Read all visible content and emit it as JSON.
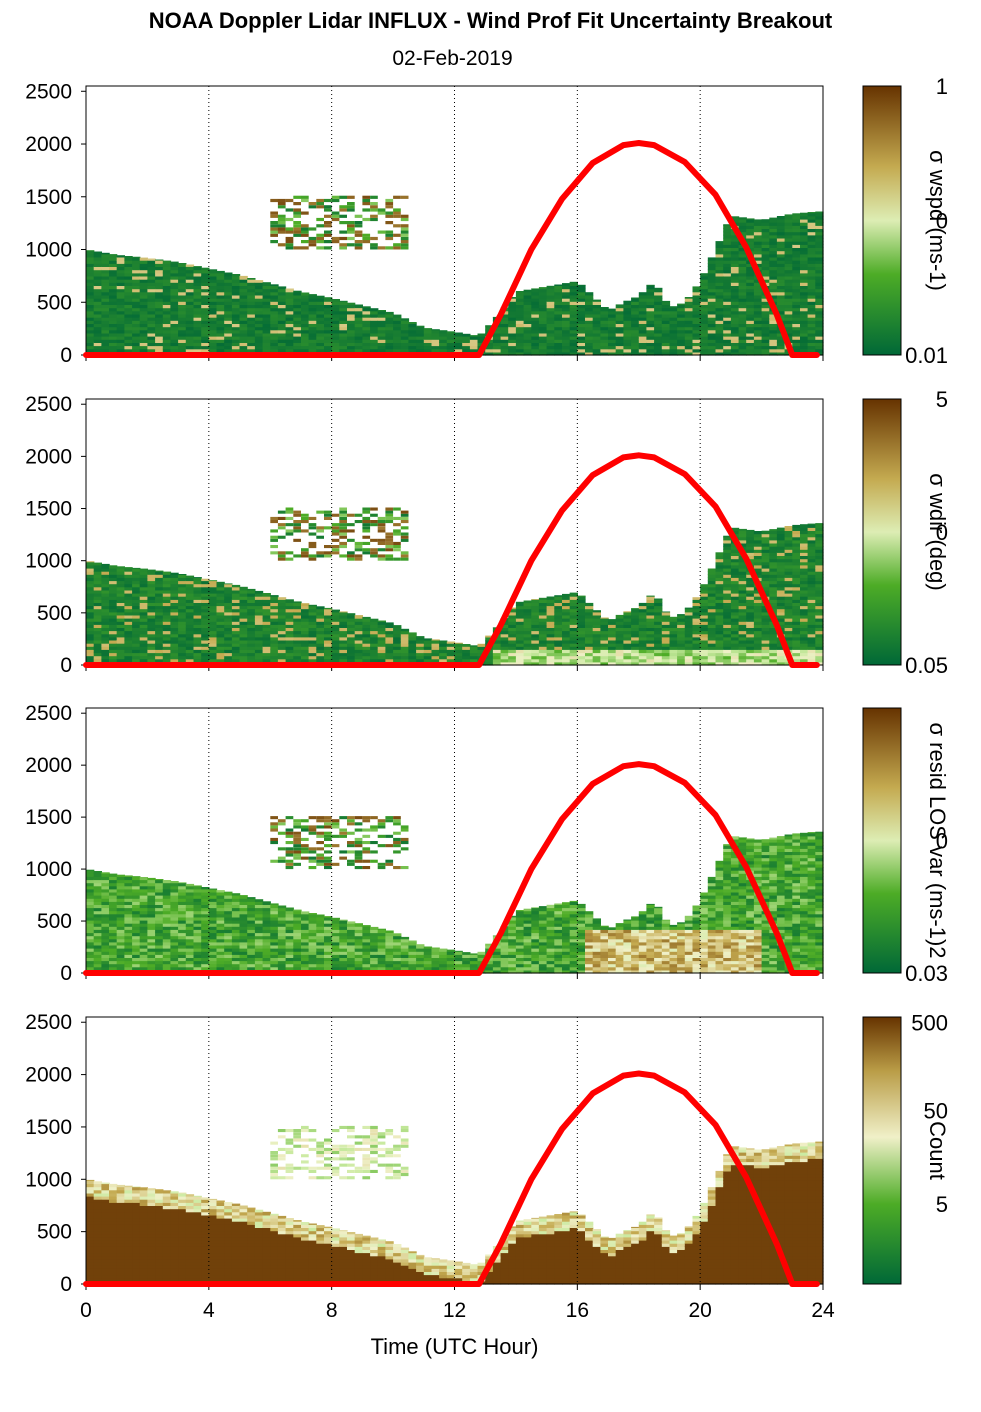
{
  "title": "NOAA Doppler Lidar INFLUX - Wind Prof Fit Uncertainty Breakout",
  "subtitle": "02-Feb-2019",
  "colors": {
    "sun_curve": "#ff0000",
    "dark_green": "#006837",
    "light": "#f5f5dc",
    "dark_brown": "#663300"
  },
  "chart_data": [
    {
      "type": "heatmap",
      "panel": 1,
      "ylim": [
        0,
        2550
      ],
      "xlim": [
        0,
        24
      ],
      "yticks": [
        "0",
        "500",
        "1000",
        "1500",
        "2000",
        "2500"
      ],
      "colorbar": {
        "label": "σ wspd (ms-1)",
        "ticks": [
          "1",
          "0",
          "0.01"
        ],
        "scale": "log"
      }
    },
    {
      "type": "heatmap",
      "panel": 2,
      "ylim": [
        0,
        2550
      ],
      "xlim": [
        0,
        24
      ],
      "yticks": [
        "0",
        "500",
        "1000",
        "1500",
        "2000",
        "2500"
      ],
      "colorbar": {
        "label": "σ wdir (deg)",
        "ticks": [
          "5",
          "0",
          "0.05"
        ],
        "scale": "log"
      }
    },
    {
      "type": "heatmap",
      "panel": 3,
      "ylim": [
        0,
        2550
      ],
      "xlim": [
        0,
        24
      ],
      "yticks": [
        "0",
        "500",
        "1000",
        "1500",
        "2000",
        "2500"
      ],
      "colorbar": {
        "label": "σ resid LOS var (ms-1)2",
        "ticks": [
          "0",
          "0.03"
        ],
        "scale": "log"
      }
    },
    {
      "type": "heatmap",
      "panel": 4,
      "ylim": [
        0,
        2550
      ],
      "xlim": [
        0,
        24
      ],
      "yticks": [
        "0",
        "500",
        "1000",
        "1500",
        "2000",
        "2500"
      ],
      "xticks": [
        "0",
        "4",
        "8",
        "12",
        "16",
        "20",
        "24"
      ],
      "xlabel": "Time (UTC Hour)",
      "colorbar": {
        "label": "Count",
        "ticks": [
          "500",
          "50",
          "5"
        ],
        "scale": "log"
      }
    }
  ],
  "sun_curve": {
    "x": [
      12.8,
      13.5,
      14.5,
      15.5,
      16.5,
      17.5,
      18.0,
      18.5,
      19.5,
      20.5,
      21.5,
      22.5,
      23.0
    ],
    "y": [
      0,
      380,
      1000,
      1480,
      1820,
      1990,
      2010,
      1990,
      1830,
      1520,
      1020,
      380,
      0
    ]
  },
  "cloud_top": {
    "x": [
      0,
      1,
      2,
      3,
      4,
      5,
      6,
      7,
      8,
      9,
      10,
      11,
      12,
      12.8,
      13.5,
      14,
      15,
      16,
      16.5,
      17,
      17.5,
      18,
      18.5,
      19,
      19.5,
      20,
      20.5,
      21,
      22,
      23,
      23.8
    ],
    "y": [
      1000,
      950,
      920,
      880,
      820,
      760,
      680,
      600,
      540,
      470,
      400,
      260,
      220,
      180,
      400,
      600,
      650,
      700,
      560,
      420,
      500,
      560,
      700,
      450,
      500,
      700,
      1000,
      1320,
      1280,
      1340,
      1360
    ]
  }
}
